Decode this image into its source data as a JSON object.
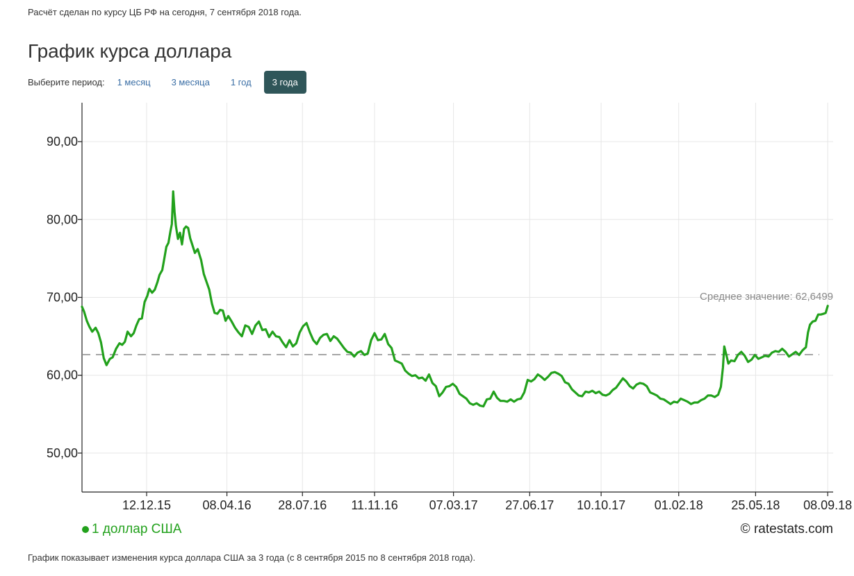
{
  "header": {
    "note": "Расчёт сделан по курсу ЦБ РФ на сегодня, 7 сентября 2018 года.",
    "title": "График курса доллара"
  },
  "period": {
    "label": "Выберите период:",
    "options": [
      "1 месяц",
      "3 месяца",
      "1 год",
      "3 года"
    ],
    "selected": "3 года"
  },
  "footer": {
    "legend": "1 доллар США",
    "credit": "© ratestats.com",
    "note": "График показывает изменения курса доллара США за 3 года (с 8 сентября 2015 по 8 сентября 2018 года)."
  },
  "colors": {
    "series": "#22a11c",
    "active_button": "#2f5659",
    "link": "#3a6ea5",
    "grid": "#e6e6e6",
    "average_line": "#888888"
  },
  "chart_data": {
    "type": "line",
    "title": "",
    "xlabel": "",
    "ylabel": "",
    "ylim": [
      45,
      95
    ],
    "y_ticks": [
      50,
      90
    ],
    "y_tick_labels": [
      "50,00",
      "60,00",
      "70,00",
      "80,00",
      "90,00"
    ],
    "y_tick_values": [
      50,
      60,
      70,
      80,
      90
    ],
    "x_range": [
      "2015-09-08",
      "2018-09-16"
    ],
    "x_ticks": [
      "2015-12-12",
      "2016-04-08",
      "2016-07-28",
      "2016-11-11",
      "2017-03-07",
      "2017-06-27",
      "2017-10-10",
      "2018-02-01",
      "2018-05-25",
      "2018-09-08"
    ],
    "x_tick_labels": [
      "12.12.15",
      "08.04.16",
      "28.07.16",
      "11.11.16",
      "07.03.17",
      "27.06.17",
      "10.10.17",
      "01.02.18",
      "25.05.18",
      "08.09.18"
    ],
    "grid": true,
    "legend_position": "bottom-left",
    "average": {
      "label": "Среднее значение: 62,6499",
      "value": 62.6499
    },
    "series": [
      {
        "name": "1 доллар США",
        "color": "#22a11c",
        "points": [
          [
            "2015-09-08",
            68.8
          ],
          [
            "2015-09-11",
            68.2
          ],
          [
            "2015-09-15",
            67.0
          ],
          [
            "2015-09-19",
            66.2
          ],
          [
            "2015-09-23",
            65.6
          ],
          [
            "2015-09-28",
            66.1
          ],
          [
            "2015-10-02",
            65.4
          ],
          [
            "2015-10-06",
            64.2
          ],
          [
            "2015-10-10",
            62.2
          ],
          [
            "2015-10-14",
            61.3
          ],
          [
            "2015-10-19",
            62.1
          ],
          [
            "2015-10-23",
            62.3
          ],
          [
            "2015-10-28",
            63.4
          ],
          [
            "2015-11-02",
            64.1
          ],
          [
            "2015-11-06",
            63.9
          ],
          [
            "2015-11-10",
            64.3
          ],
          [
            "2015-11-14",
            65.6
          ],
          [
            "2015-11-19",
            65.0
          ],
          [
            "2015-11-23",
            65.4
          ],
          [
            "2015-11-27",
            66.4
          ],
          [
            "2015-12-01",
            67.2
          ],
          [
            "2015-12-05",
            67.3
          ],
          [
            "2015-12-09",
            69.4
          ],
          [
            "2015-12-13",
            70.2
          ],
          [
            "2015-12-16",
            71.1
          ],
          [
            "2015-12-20",
            70.6
          ],
          [
            "2015-12-24",
            71.0
          ],
          [
            "2015-12-28",
            72.0
          ],
          [
            "2015-12-31",
            72.9
          ],
          [
            "2016-01-04",
            73.5
          ],
          [
            "2016-01-07",
            75.0
          ],
          [
            "2016-01-10",
            76.5
          ],
          [
            "2016-01-13",
            77.0
          ],
          [
            "2016-01-16",
            78.5
          ],
          [
            "2016-01-18",
            79.4
          ],
          [
            "2016-01-20",
            83.6
          ],
          [
            "2016-01-22",
            81.0
          ],
          [
            "2016-01-24",
            79.2
          ],
          [
            "2016-01-27",
            77.5
          ],
          [
            "2016-01-30",
            78.3
          ],
          [
            "2016-02-02",
            76.8
          ],
          [
            "2016-02-05",
            78.8
          ],
          [
            "2016-02-08",
            79.1
          ],
          [
            "2016-02-11",
            78.9
          ],
          [
            "2016-02-14",
            77.6
          ],
          [
            "2016-02-17",
            76.8
          ],
          [
            "2016-02-21",
            75.7
          ],
          [
            "2016-02-25",
            76.2
          ],
          [
            "2016-03-01",
            74.8
          ],
          [
            "2016-03-05",
            73.0
          ],
          [
            "2016-03-09",
            72.0
          ],
          [
            "2016-03-13",
            71.0
          ],
          [
            "2016-03-17",
            69.2
          ],
          [
            "2016-03-21",
            68.0
          ],
          [
            "2016-03-25",
            67.9
          ],
          [
            "2016-03-29",
            68.4
          ],
          [
            "2016-04-02",
            68.3
          ],
          [
            "2016-04-06",
            67.0
          ],
          [
            "2016-04-10",
            67.6
          ],
          [
            "2016-04-15",
            66.9
          ],
          [
            "2016-04-20",
            66.1
          ],
          [
            "2016-04-25",
            65.5
          ],
          [
            "2016-04-30",
            65.0
          ],
          [
            "2016-05-05",
            66.4
          ],
          [
            "2016-05-10",
            66.2
          ],
          [
            "2016-05-15",
            65.3
          ],
          [
            "2016-05-20",
            66.4
          ],
          [
            "2016-05-25",
            66.9
          ],
          [
            "2016-05-30",
            65.8
          ],
          [
            "2016-06-04",
            65.9
          ],
          [
            "2016-06-09",
            64.9
          ],
          [
            "2016-06-14",
            65.6
          ],
          [
            "2016-06-19",
            65.0
          ],
          [
            "2016-06-24",
            64.9
          ],
          [
            "2016-06-29",
            64.2
          ],
          [
            "2016-07-04",
            63.6
          ],
          [
            "2016-07-09",
            64.5
          ],
          [
            "2016-07-14",
            63.7
          ],
          [
            "2016-07-19",
            64.1
          ],
          [
            "2016-07-24",
            65.5
          ],
          [
            "2016-07-29",
            66.3
          ],
          [
            "2016-08-03",
            66.7
          ],
          [
            "2016-08-08",
            65.5
          ],
          [
            "2016-08-13",
            64.5
          ],
          [
            "2016-08-18",
            64.0
          ],
          [
            "2016-08-23",
            64.8
          ],
          [
            "2016-08-28",
            65.2
          ],
          [
            "2016-09-02",
            65.3
          ],
          [
            "2016-09-07",
            64.4
          ],
          [
            "2016-09-12",
            65.0
          ],
          [
            "2016-09-17",
            64.7
          ],
          [
            "2016-09-22",
            64.1
          ],
          [
            "2016-09-27",
            63.5
          ],
          [
            "2016-10-02",
            63.0
          ],
          [
            "2016-10-07",
            62.9
          ],
          [
            "2016-10-12",
            62.4
          ],
          [
            "2016-10-17",
            62.9
          ],
          [
            "2016-10-22",
            63.1
          ],
          [
            "2016-10-27",
            62.6
          ],
          [
            "2016-11-01",
            62.8
          ],
          [
            "2016-11-06",
            64.5
          ],
          [
            "2016-11-11",
            65.4
          ],
          [
            "2016-11-16",
            64.5
          ],
          [
            "2016-11-21",
            64.6
          ],
          [
            "2016-11-26",
            65.3
          ],
          [
            "2016-12-01",
            64.0
          ],
          [
            "2016-12-06",
            63.5
          ],
          [
            "2016-12-11",
            61.9
          ],
          [
            "2016-12-16",
            61.7
          ],
          [
            "2016-12-21",
            61.5
          ],
          [
            "2016-12-26",
            60.6
          ],
          [
            "2016-12-31",
            60.2
          ],
          [
            "2017-01-05",
            59.9
          ],
          [
            "2017-01-10",
            60.0
          ],
          [
            "2017-01-15",
            59.6
          ],
          [
            "2017-01-20",
            59.7
          ],
          [
            "2017-01-25",
            59.3
          ],
          [
            "2017-01-30",
            60.1
          ],
          [
            "2017-02-04",
            59.0
          ],
          [
            "2017-02-09",
            58.6
          ],
          [
            "2017-02-14",
            57.3
          ],
          [
            "2017-02-19",
            57.8
          ],
          [
            "2017-02-24",
            58.5
          ],
          [
            "2017-03-01",
            58.6
          ],
          [
            "2017-03-06",
            58.9
          ],
          [
            "2017-03-11",
            58.5
          ],
          [
            "2017-03-16",
            57.6
          ],
          [
            "2017-03-21",
            57.3
          ],
          [
            "2017-03-26",
            57.0
          ],
          [
            "2017-03-31",
            56.4
          ],
          [
            "2017-04-05",
            56.2
          ],
          [
            "2017-04-10",
            56.4
          ],
          [
            "2017-04-15",
            56.1
          ],
          [
            "2017-04-20",
            56.0
          ],
          [
            "2017-04-25",
            56.9
          ],
          [
            "2017-04-30",
            57.0
          ],
          [
            "2017-05-05",
            57.9
          ],
          [
            "2017-05-10",
            57.1
          ],
          [
            "2017-05-15",
            56.7
          ],
          [
            "2017-05-20",
            56.7
          ],
          [
            "2017-05-25",
            56.6
          ],
          [
            "2017-05-30",
            56.9
          ],
          [
            "2017-06-04",
            56.6
          ],
          [
            "2017-06-09",
            56.9
          ],
          [
            "2017-06-14",
            57.0
          ],
          [
            "2017-06-19",
            57.8
          ],
          [
            "2017-06-24",
            59.4
          ],
          [
            "2017-06-29",
            59.2
          ],
          [
            "2017-07-04",
            59.5
          ],
          [
            "2017-07-09",
            60.1
          ],
          [
            "2017-07-14",
            59.8
          ],
          [
            "2017-07-19",
            59.4
          ],
          [
            "2017-07-24",
            59.8
          ],
          [
            "2017-07-29",
            60.3
          ],
          [
            "2017-08-03",
            60.4
          ],
          [
            "2017-08-08",
            60.2
          ],
          [
            "2017-08-13",
            59.9
          ],
          [
            "2017-08-18",
            59.1
          ],
          [
            "2017-08-23",
            58.9
          ],
          [
            "2017-08-28",
            58.2
          ],
          [
            "2017-09-02",
            57.8
          ],
          [
            "2017-09-07",
            57.4
          ],
          [
            "2017-09-12",
            57.3
          ],
          [
            "2017-09-17",
            57.9
          ],
          [
            "2017-09-22",
            57.8
          ],
          [
            "2017-09-27",
            58.0
          ],
          [
            "2017-10-02",
            57.7
          ],
          [
            "2017-10-07",
            57.9
          ],
          [
            "2017-10-12",
            57.5
          ],
          [
            "2017-10-17",
            57.4
          ],
          [
            "2017-10-22",
            57.6
          ],
          [
            "2017-10-27",
            58.1
          ],
          [
            "2017-11-01",
            58.4
          ],
          [
            "2017-11-06",
            59.0
          ],
          [
            "2017-11-11",
            59.6
          ],
          [
            "2017-11-16",
            59.2
          ],
          [
            "2017-11-21",
            58.6
          ],
          [
            "2017-11-26",
            58.3
          ],
          [
            "2017-12-01",
            58.8
          ],
          [
            "2017-12-06",
            59.0
          ],
          [
            "2017-12-11",
            58.9
          ],
          [
            "2017-12-16",
            58.6
          ],
          [
            "2017-12-21",
            57.8
          ],
          [
            "2017-12-26",
            57.6
          ],
          [
            "2017-12-31",
            57.4
          ],
          [
            "2018-01-05",
            57.0
          ],
          [
            "2018-01-10",
            56.9
          ],
          [
            "2018-01-15",
            56.6
          ],
          [
            "2018-01-20",
            56.3
          ],
          [
            "2018-01-25",
            56.6
          ],
          [
            "2018-01-30",
            56.5
          ],
          [
            "2018-02-04",
            57.0
          ],
          [
            "2018-02-09",
            56.8
          ],
          [
            "2018-02-14",
            56.6
          ],
          [
            "2018-02-19",
            56.3
          ],
          [
            "2018-02-24",
            56.5
          ],
          [
            "2018-03-01",
            56.5
          ],
          [
            "2018-03-06",
            56.8
          ],
          [
            "2018-03-11",
            57.0
          ],
          [
            "2018-03-16",
            57.4
          ],
          [
            "2018-03-21",
            57.4
          ],
          [
            "2018-03-26",
            57.2
          ],
          [
            "2018-03-31",
            57.5
          ],
          [
            "2018-04-04",
            58.5
          ],
          [
            "2018-04-07",
            61.0
          ],
          [
            "2018-04-09",
            63.7
          ],
          [
            "2018-04-12",
            62.6
          ],
          [
            "2018-04-15",
            61.5
          ],
          [
            "2018-04-19",
            61.9
          ],
          [
            "2018-04-24",
            61.8
          ],
          [
            "2018-04-29",
            62.6
          ],
          [
            "2018-05-04",
            63.0
          ],
          [
            "2018-05-09",
            62.5
          ],
          [
            "2018-05-14",
            61.7
          ],
          [
            "2018-05-19",
            62.0
          ],
          [
            "2018-05-24",
            62.6
          ],
          [
            "2018-05-29",
            62.1
          ],
          [
            "2018-06-03",
            62.3
          ],
          [
            "2018-06-08",
            62.5
          ],
          [
            "2018-06-13",
            62.4
          ],
          [
            "2018-06-18",
            62.9
          ],
          [
            "2018-06-23",
            63.1
          ],
          [
            "2018-06-28",
            63.0
          ],
          [
            "2018-07-03",
            63.4
          ],
          [
            "2018-07-08",
            63.0
          ],
          [
            "2018-07-13",
            62.4
          ],
          [
            "2018-07-18",
            62.7
          ],
          [
            "2018-07-23",
            63.0
          ],
          [
            "2018-07-28",
            62.6
          ],
          [
            "2018-08-02",
            63.2
          ],
          [
            "2018-08-07",
            63.6
          ],
          [
            "2018-08-10",
            65.5
          ],
          [
            "2018-08-13",
            66.5
          ],
          [
            "2018-08-17",
            66.9
          ],
          [
            "2018-08-21",
            67.0
          ],
          [
            "2018-08-25",
            67.8
          ],
          [
            "2018-08-29",
            67.8
          ],
          [
            "2018-09-02",
            67.9
          ],
          [
            "2018-09-05",
            68.0
          ],
          [
            "2018-09-08",
            68.9
          ]
        ]
      }
    ]
  }
}
